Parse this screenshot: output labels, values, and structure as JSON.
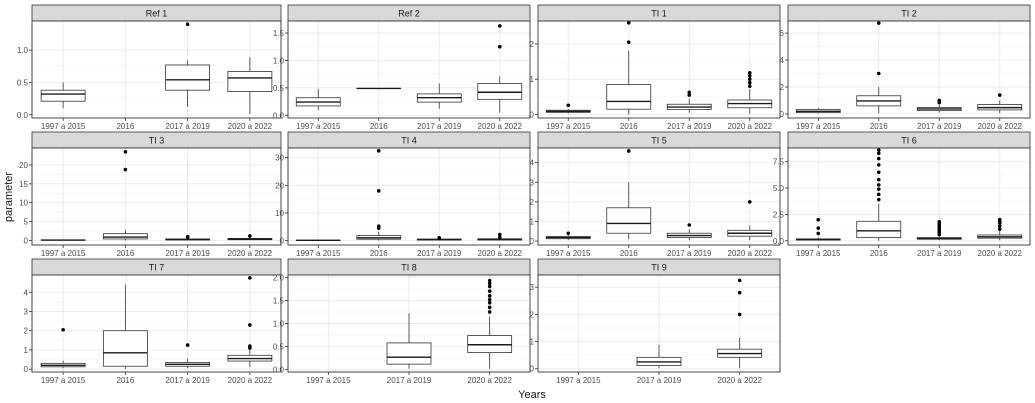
{
  "figure": {
    "ylabel": "parameter",
    "xlabel": "Years",
    "categories": [
      "1997 a 2015",
      "2016",
      "2017 a 2019",
      "2020 a 2022"
    ]
  },
  "colors": {
    "strip": "#d9d9d9",
    "grid": "#ebebeb",
    "border": "#333333",
    "box_fill": "#ffffff",
    "outlier": "#000000"
  },
  "chart_data": [
    {
      "type": "box",
      "title": "Ref 1",
      "ylim": [
        -0.05,
        1.45
      ],
      "yticks": [
        0,
        0.5,
        1
      ],
      "yticklabels": [
        "0.0",
        "0.5",
        "1.0"
      ],
      "xticklabels": [
        "1997 a 2015",
        "2016",
        "2017 a 2019",
        "2020 a 2022"
      ],
      "boxes": [
        {
          "cat": "1997 a 2015",
          "min": 0.1,
          "q1": 0.21,
          "median": 0.32,
          "q3": 0.38,
          "max": 0.5,
          "outliers": []
        },
        {
          "cat": "2017 a 2019",
          "min": 0.12,
          "q1": 0.38,
          "median": 0.54,
          "q3": 0.77,
          "max": 0.84,
          "outliers": [
            1.4
          ]
        },
        {
          "cat": "2020 a 2022",
          "min": 0.01,
          "q1": 0.36,
          "median": 0.57,
          "q3": 0.67,
          "max": 0.89,
          "outliers": []
        }
      ]
    },
    {
      "type": "box",
      "title": "Ref 2",
      "ylim": [
        -0.05,
        1.72
      ],
      "yticks": [
        0,
        0.5,
        1,
        1.5
      ],
      "yticklabels": [
        "0.0",
        "0.5",
        "1.0",
        "1.5"
      ],
      "xticklabels": [
        "1997 a 2015",
        "2016",
        "2017 a 2019",
        "2020 a 2022"
      ],
      "boxes": [
        {
          "cat": "1997 a 2015",
          "min": 0.09,
          "q1": 0.17,
          "median": 0.24,
          "q3": 0.32,
          "max": 0.48,
          "outliers": []
        },
        {
          "cat": "2016",
          "min": 0.49,
          "q1": 0.49,
          "median": 0.49,
          "q3": 0.49,
          "max": 0.49,
          "outliers": []
        },
        {
          "cat": "2017 a 2019",
          "min": 0.12,
          "q1": 0.24,
          "median": 0.32,
          "q3": 0.39,
          "max": 0.58,
          "outliers": []
        },
        {
          "cat": "2020 a 2022",
          "min": 0.05,
          "q1": 0.29,
          "median": 0.42,
          "q3": 0.58,
          "max": 0.71,
          "outliers": [
            1.25,
            1.63
          ]
        }
      ]
    },
    {
      "type": "box",
      "title": "TI 1",
      "ylim": [
        -0.1,
        2.65
      ],
      "yticks": [
        0,
        1,
        2
      ],
      "yticklabels": [
        "0",
        "1",
        "2"
      ],
      "xticklabels": [
        "1997 a 2015",
        "2016",
        "2017 a 2019",
        "2020 a 2022"
      ],
      "boxes": [
        {
          "cat": "1997 a 2015",
          "min": 0.03,
          "q1": 0.06,
          "median": 0.09,
          "q3": 0.12,
          "max": 0.15,
          "outliers": [
            0.26
          ]
        },
        {
          "cat": "2016",
          "min": 0.0,
          "q1": 0.15,
          "median": 0.37,
          "q3": 0.85,
          "max": 1.8,
          "outliers": [
            2.05,
            2.6
          ]
        },
        {
          "cat": "2017 a 2019",
          "min": 0.05,
          "q1": 0.14,
          "median": 0.21,
          "q3": 0.29,
          "max": 0.45,
          "outliers": [
            0.55,
            0.63
          ]
        },
        {
          "cat": "2020 a 2022",
          "min": 0.02,
          "q1": 0.19,
          "median": 0.31,
          "q3": 0.41,
          "max": 0.72,
          "outliers": [
            0.8,
            0.9,
            1.0,
            1.1,
            1.18
          ]
        }
      ]
    },
    {
      "type": "box",
      "title": "TI 2",
      "ylim": [
        -0.3,
        6.9
      ],
      "yticks": [
        0,
        2,
        4,
        6
      ],
      "yticklabels": [
        "0",
        "2",
        "4",
        "6"
      ],
      "xticklabels": [
        "1997 a 2015",
        "2016",
        "2017 a 2019",
        "2020 a 2022"
      ],
      "boxes": [
        {
          "cat": "1997 a 2015",
          "min": 0.02,
          "q1": 0.1,
          "median": 0.2,
          "q3": 0.33,
          "max": 0.45,
          "outliers": []
        },
        {
          "cat": "2016",
          "min": 0.05,
          "q1": 0.6,
          "median": 0.97,
          "q3": 1.35,
          "max": 2.0,
          "outliers": [
            3.0,
            6.75
          ]
        },
        {
          "cat": "2017 a 2019",
          "min": 0.1,
          "q1": 0.25,
          "median": 0.37,
          "q3": 0.48,
          "max": 0.7,
          "outliers": [
            0.85,
            1.0
          ]
        },
        {
          "cat": "2020 a 2022",
          "min": 0.05,
          "q1": 0.3,
          "median": 0.47,
          "q3": 0.7,
          "max": 1.0,
          "outliers": [
            1.4
          ]
        }
      ]
    },
    {
      "type": "box",
      "title": "TI 3",
      "ylim": [
        -1.2,
        24.5
      ],
      "yticks": [
        0,
        5,
        10,
        15,
        20
      ],
      "yticklabels": [
        "0",
        "5",
        "10",
        "15",
        "20"
      ],
      "xticklabels": [
        "1997 a 2015",
        "2016",
        "2017 a 2019",
        "2020 a 2022"
      ],
      "boxes": [
        {
          "cat": "1997 a 2015",
          "min": 0.0,
          "q1": 0.05,
          "median": 0.1,
          "q3": 0.15,
          "max": 0.2,
          "outliers": []
        },
        {
          "cat": "2016",
          "min": 0.0,
          "q1": 0.4,
          "median": 0.9,
          "q3": 1.8,
          "max": 2.8,
          "outliers": [
            18.8,
            23.5
          ]
        },
        {
          "cat": "2017 a 2019",
          "min": 0.05,
          "q1": 0.15,
          "median": 0.25,
          "q3": 0.4,
          "max": 0.6,
          "outliers": [
            0.9,
            1.0
          ]
        },
        {
          "cat": "2020 a 2022",
          "min": 0.05,
          "q1": 0.2,
          "median": 0.35,
          "q3": 0.55,
          "max": 0.8,
          "outliers": [
            1.2
          ]
        }
      ]
    },
    {
      "type": "box",
      "title": "TI 4",
      "ylim": [
        -1.6,
        33.5
      ],
      "yticks": [
        0,
        10,
        20,
        30
      ],
      "yticklabels": [
        "0",
        "10",
        "20",
        "30"
      ],
      "xticklabels": [
        "1997 a 2015",
        "2016",
        "2017 a 2019",
        "2020 a 2022"
      ],
      "boxes": [
        {
          "cat": "1997 a 2015",
          "min": 0.0,
          "q1": 0.05,
          "median": 0.1,
          "q3": 0.15,
          "max": 0.25,
          "outliers": []
        },
        {
          "cat": "2016",
          "min": 0.0,
          "q1": 0.5,
          "median": 1.0,
          "q3": 1.8,
          "max": 3.2,
          "outliers": [
            4.5,
            5.2,
            18,
            32.5
          ]
        },
        {
          "cat": "2017 a 2019",
          "min": 0.05,
          "q1": 0.2,
          "median": 0.35,
          "q3": 0.55,
          "max": 0.8,
          "outliers": [
            1.0
          ]
        },
        {
          "cat": "2020 a 2022",
          "min": 0.05,
          "q1": 0.2,
          "median": 0.4,
          "q3": 0.65,
          "max": 1.0,
          "outliers": [
            1.2,
            2.2
          ]
        }
      ]
    },
    {
      "type": "box",
      "title": "TI 5",
      "ylim": [
        -0.2,
        4.75
      ],
      "yticks": [
        0,
        1,
        2,
        3,
        4
      ],
      "yticklabels": [
        "0",
        "1",
        "2",
        "3",
        "4"
      ],
      "xticklabels": [
        "1997 a 2015",
        "2016",
        "2017 a 2019",
        "2020 a 2022"
      ],
      "boxes": [
        {
          "cat": "1997 a 2015",
          "min": 0.05,
          "q1": 0.12,
          "median": 0.18,
          "q3": 0.24,
          "max": 0.3,
          "outliers": [
            0.4
          ]
        },
        {
          "cat": "2016",
          "min": 0.1,
          "q1": 0.4,
          "median": 0.9,
          "q3": 1.7,
          "max": 3.0,
          "outliers": [
            4.6
          ]
        },
        {
          "cat": "2017 a 2019",
          "min": 0.05,
          "q1": 0.18,
          "median": 0.28,
          "q3": 0.4,
          "max": 0.6,
          "outliers": [
            0.82
          ]
        },
        {
          "cat": "2020 a 2022",
          "min": 0.05,
          "q1": 0.25,
          "median": 0.4,
          "q3": 0.55,
          "max": 0.8,
          "outliers": [
            2.0
          ]
        }
      ]
    },
    {
      "type": "box",
      "title": "TI 6",
      "ylim": [
        -0.4,
        8.8
      ],
      "yticks": [
        0,
        2.5,
        5,
        7.5
      ],
      "yticklabels": [
        "0.0",
        "2.5",
        "5.0",
        "7.5"
      ],
      "xticklabels": [
        "1997 a 2015",
        "2016",
        "2017 a 2019",
        "2020 a 2022"
      ],
      "boxes": [
        {
          "cat": "1997 a 2015",
          "min": 0.02,
          "q1": 0.07,
          "median": 0.12,
          "q3": 0.18,
          "max": 0.3,
          "outliers": [
            0.7,
            1.2,
            2.0
          ]
        },
        {
          "cat": "2016",
          "min": 0.0,
          "q1": 0.3,
          "median": 0.95,
          "q3": 1.85,
          "max": 3.5,
          "outliers": [
            3.9,
            4.4,
            4.9,
            5.3,
            5.8,
            6.5,
            7.2,
            7.8,
            8.3,
            8.6
          ]
        },
        {
          "cat": "2017 a 2019",
          "min": 0.05,
          "q1": 0.15,
          "median": 0.22,
          "q3": 0.3,
          "max": 0.45,
          "outliers": [
            0.6,
            0.8,
            1.0,
            1.2,
            1.4,
            1.6,
            1.8
          ]
        },
        {
          "cat": "2020 a 2022",
          "min": 0.05,
          "q1": 0.25,
          "median": 0.38,
          "q3": 0.55,
          "max": 0.9,
          "outliers": [
            1.1,
            1.4,
            1.7,
            1.9,
            2.0
          ]
        }
      ]
    },
    {
      "type": "box",
      "title": "TI 7",
      "ylim": [
        -0.15,
        4.9
      ],
      "yticks": [
        0,
        1,
        2,
        3,
        4
      ],
      "yticklabels": [
        "0",
        "1",
        "2",
        "3",
        "4"
      ],
      "xticklabels": [
        "1997 a 2015",
        "2016",
        "2017 a 2019",
        "2020 a 2022"
      ],
      "boxes": [
        {
          "cat": "1997 a 2015",
          "min": 0.05,
          "q1": 0.12,
          "median": 0.2,
          "q3": 0.3,
          "max": 0.45,
          "outliers": [
            2.05
          ]
        },
        {
          "cat": "2016",
          "min": 0.0,
          "q1": 0.15,
          "median": 0.85,
          "q3": 2.0,
          "max": 4.4,
          "outliers": []
        },
        {
          "cat": "2017 a 2019",
          "min": 0.05,
          "q1": 0.15,
          "median": 0.25,
          "q3": 0.35,
          "max": 0.55,
          "outliers": [
            1.25
          ]
        },
        {
          "cat": "2020 a 2022",
          "min": 0.1,
          "q1": 0.42,
          "median": 0.55,
          "q3": 0.72,
          "max": 1.0,
          "outliers": [
            1.1,
            1.2,
            2.3,
            4.75
          ]
        }
      ]
    },
    {
      "type": "box",
      "title": "TI 8",
      "ylim": [
        -0.05,
        2.05
      ],
      "yticks": [
        0,
        0.5,
        1,
        1.5,
        2
      ],
      "yticklabels": [
        "0.0",
        "0.5",
        "1.0",
        "1.5",
        "2.0"
      ],
      "xticklabels": [
        "1997 a 2015",
        "2017 a 2019",
        "2020 a 2022"
      ],
      "boxes": [
        {
          "cat": "2017 a 2019",
          "min": 0.02,
          "q1": 0.12,
          "median": 0.27,
          "q3": 0.58,
          "max": 1.22,
          "outliers": []
        },
        {
          "cat": "2020 a 2022",
          "min": 0.02,
          "q1": 0.37,
          "median": 0.54,
          "q3": 0.74,
          "max": 1.15,
          "outliers": [
            1.25,
            1.35,
            1.45,
            1.52,
            1.6,
            1.7,
            1.8,
            1.87,
            1.93
          ]
        }
      ]
    },
    {
      "type": "box",
      "title": "TI 9",
      "ylim": [
        -0.12,
        3.45
      ],
      "yticks": [
        0,
        1,
        2,
        3
      ],
      "yticklabels": [
        "0",
        "1",
        "2",
        "3"
      ],
      "xticklabels": [
        "1997 a 2015",
        "2017 a 2019",
        "2020 a 2022"
      ],
      "boxes": [
        {
          "cat": "2017 a 2019",
          "min": 0.02,
          "q1": 0.12,
          "median": 0.25,
          "q3": 0.42,
          "max": 0.88,
          "outliers": []
        },
        {
          "cat": "2020 a 2022",
          "min": 0.02,
          "q1": 0.42,
          "median": 0.56,
          "q3": 0.72,
          "max": 1.15,
          "outliers": [
            2.0,
            2.8,
            3.25
          ]
        }
      ]
    }
  ]
}
